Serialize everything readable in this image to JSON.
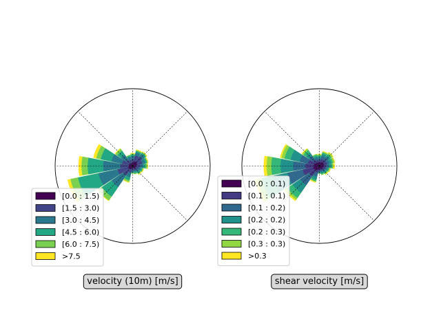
{
  "chart_data": [
    {
      "type": "windrose",
      "title": "velocity (10m) [m/s]",
      "directions_deg": [
        0,
        22.5,
        45,
        67.5,
        90,
        112.5,
        135,
        157.5,
        180,
        202.5,
        225,
        247.5,
        270,
        292.5,
        315,
        337.5
      ],
      "legend": {
        "placement": "lower-left",
        "entries": [
          "[0.0 : 1.5)",
          "[1.5 : 3.0)",
          "[3.0 : 4.5)",
          "[4.5 : 6.0)",
          "[6.0 : 7.5)",
          ">7.5"
        ],
        "colors": [
          "#440154",
          "#414487",
          "#2a788e",
          "#22a884",
          "#7ad151",
          "#fde725"
        ]
      },
      "radial_max": 100,
      "cumulative_rings": [
        [
          4,
          9,
          13,
          15,
          16,
          17
        ],
        [
          6,
          14,
          18,
          20,
          21,
          22
        ],
        [
          7,
          15,
          19,
          21,
          22,
          23
        ],
        [
          6,
          13,
          17,
          19,
          20,
          21
        ],
        [
          5,
          10,
          14,
          17,
          19,
          20
        ],
        [
          4,
          8,
          11,
          13,
          14,
          15
        ],
        [
          4,
          7,
          10,
          12,
          13,
          14
        ],
        [
          3,
          6,
          8,
          10,
          11,
          11
        ],
        [
          3,
          6,
          8,
          9,
          10,
          10
        ],
        [
          4,
          9,
          15,
          19,
          21,
          22
        ],
        [
          5,
          15,
          33,
          48,
          54,
          55
        ],
        [
          6,
          20,
          45,
          72,
          82,
          86
        ],
        [
          5,
          16,
          38,
          58,
          66,
          70
        ],
        [
          5,
          14,
          28,
          42,
          48,
          52
        ],
        [
          4,
          10,
          18,
          24,
          27,
          28
        ],
        [
          4,
          8,
          12,
          14,
          15,
          15
        ]
      ]
    },
    {
      "type": "windrose",
      "title": "shear velocity [m/s]",
      "directions_deg": [
        0,
        22.5,
        45,
        67.5,
        90,
        112.5,
        135,
        157.5,
        180,
        202.5,
        225,
        247.5,
        270,
        292.5,
        315,
        337.5
      ],
      "legend": {
        "placement": "lower-left",
        "entries": [
          "[0.0 : 0.1)",
          "[0.1 : 0.1)",
          "[0.1 : 0.2)",
          "[0.2 : 0.2)",
          "[0.2 : 0.3)",
          "[0.3 : 0.3)",
          ">0.3"
        ],
        "colors": [
          "#440154",
          "#443983",
          "#31688e",
          "#21918c",
          "#35b779",
          "#90d743",
          "#fde725"
        ]
      },
      "radial_max": 100,
      "cumulative_rings": [
        [
          4,
          7,
          10,
          12,
          14,
          15,
          16
        ],
        [
          5,
          9,
          13,
          16,
          18,
          19,
          20
        ],
        [
          6,
          10,
          14,
          17,
          19,
          21,
          22
        ],
        [
          6,
          10,
          13,
          16,
          18,
          20,
          21
        ],
        [
          6,
          9,
          12,
          15,
          17,
          18,
          20
        ],
        [
          5,
          8,
          10,
          12,
          13,
          14,
          15
        ],
        [
          4,
          7,
          9,
          11,
          12,
          13,
          14
        ],
        [
          4,
          6,
          8,
          10,
          11,
          12,
          12
        ],
        [
          4,
          6,
          8,
          9,
          10,
          10,
          10
        ],
        [
          5,
          9,
          14,
          18,
          20,
          21,
          22
        ],
        [
          7,
          16,
          30,
          42,
          50,
          53,
          55
        ],
        [
          8,
          22,
          42,
          62,
          76,
          82,
          85
        ],
        [
          7,
          18,
          34,
          50,
          62,
          68,
          72
        ],
        [
          7,
          15,
          26,
          38,
          46,
          50,
          52
        ],
        [
          5,
          10,
          16,
          21,
          25,
          27,
          28
        ],
        [
          5,
          8,
          11,
          13,
          15,
          16,
          16
        ]
      ]
    }
  ]
}
